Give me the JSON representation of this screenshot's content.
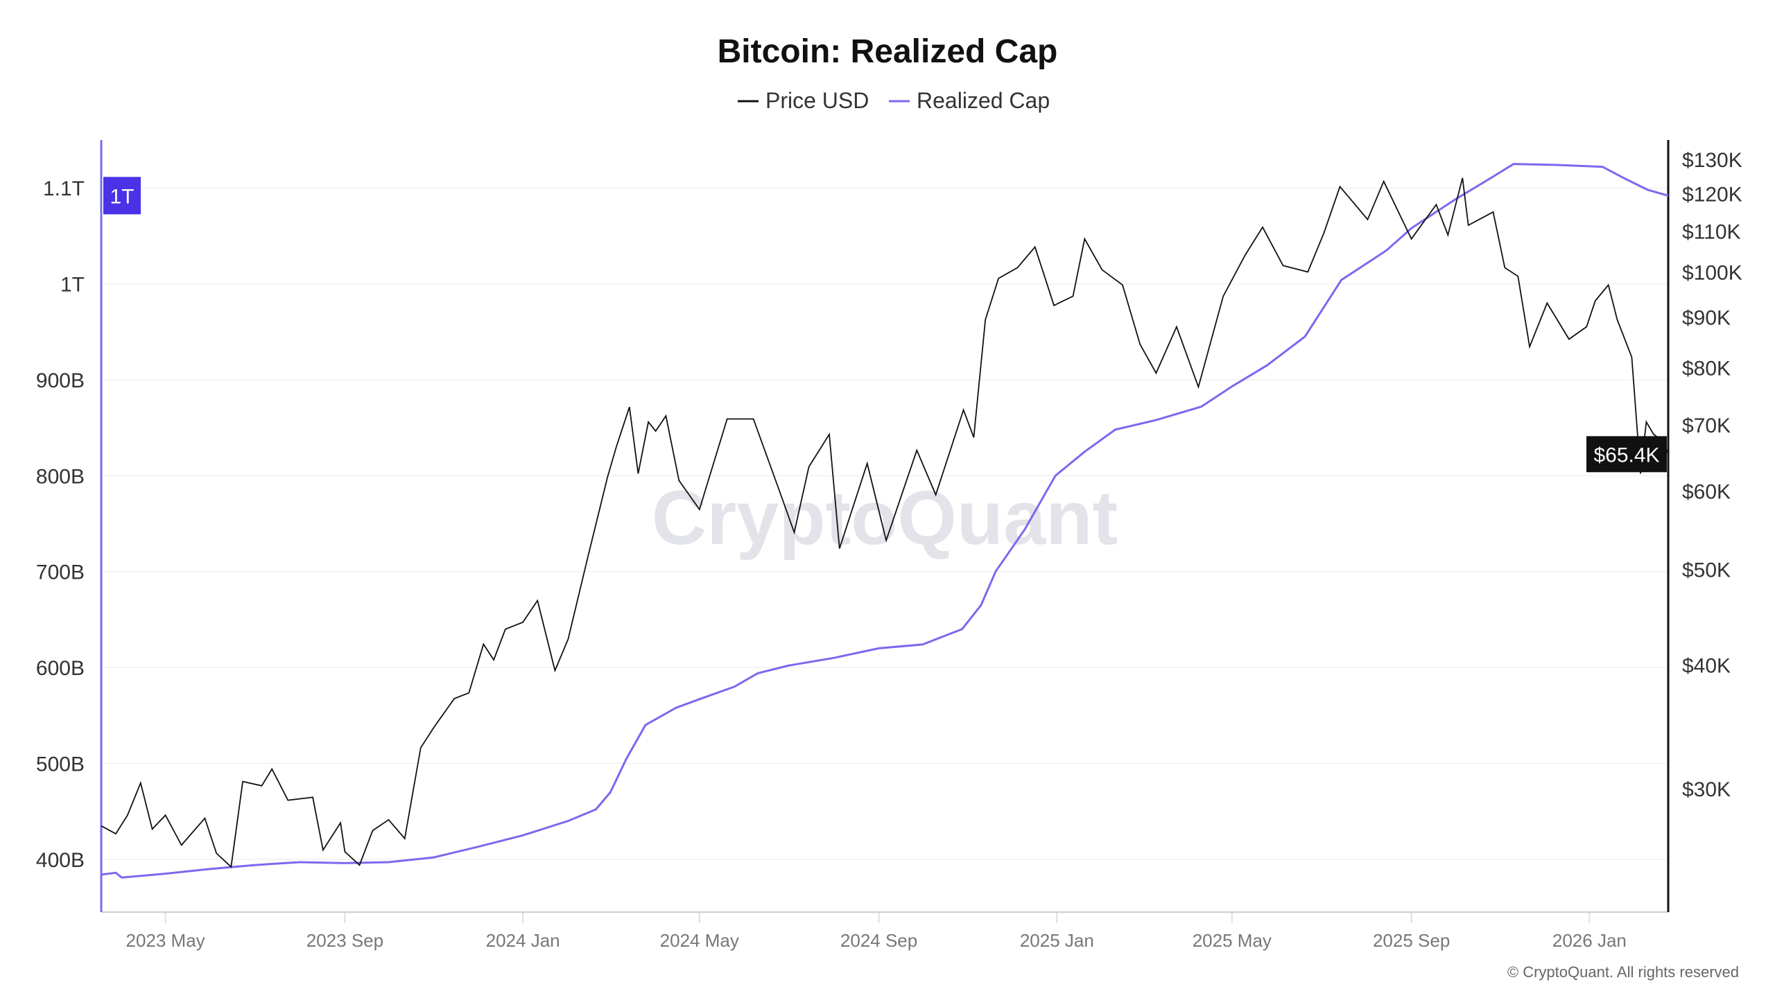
{
  "chart_data": {
    "type": "line",
    "title": "Bitcoin: Realized Cap",
    "watermark": "CryptoQuant",
    "copyright": "© CryptoQuant. All rights reserved",
    "legend": {
      "placement": "top-center",
      "entries": [
        "Price USD",
        "Realized Cap"
      ]
    },
    "colors": {
      "price": "#111111",
      "realized": "#7b68ee",
      "badge_left": "#4b32e6",
      "badge_right": "#111111"
    },
    "x_range": [
      "2023-03-18",
      "2026-02-24"
    ],
    "x_ticks": [
      {
        "date": "2023-05-01",
        "label": "2023 May"
      },
      {
        "date": "2023-09-01",
        "label": "2023 Sep"
      },
      {
        "date": "2024-01-01",
        "label": "2024 Jan"
      },
      {
        "date": "2024-05-01",
        "label": "2024 May"
      },
      {
        "date": "2024-09-01",
        "label": "2024 Sep"
      },
      {
        "date": "2025-01-01",
        "label": "2025 Jan"
      },
      {
        "date": "2025-05-01",
        "label": "2025 May"
      },
      {
        "date": "2025-09-01",
        "label": "2025 Sep"
      },
      {
        "date": "2026-01-01",
        "label": "2026 Jan"
      }
    ],
    "left_axis": {
      "name": "Realized Cap",
      "scale": "linear",
      "range": [
        345,
        1150
      ],
      "ticks": [
        {
          "v": 400,
          "label": "400B"
        },
        {
          "v": 500,
          "label": "500B"
        },
        {
          "v": 600,
          "label": "600B"
        },
        {
          "v": 700,
          "label": "700B"
        },
        {
          "v": 800,
          "label": "800B"
        },
        {
          "v": 900,
          "label": "900B"
        },
        {
          "v": 1000,
          "label": "1T"
        },
        {
          "v": 1100,
          "label": "1.1T"
        }
      ],
      "current_label": "1T",
      "current_value": 1092
    },
    "right_axis": {
      "name": "Price USD",
      "scale": "log",
      "range": [
        22.5,
        136
      ],
      "ticks": [
        {
          "v": 30,
          "label": "$30K"
        },
        {
          "v": 40,
          "label": "$40K"
        },
        {
          "v": 50,
          "label": "$50K"
        },
        {
          "v": 60,
          "label": "$60K"
        },
        {
          "v": 70,
          "label": "$70K"
        },
        {
          "v": 80,
          "label": "$80K"
        },
        {
          "v": 90,
          "label": "$90K"
        },
        {
          "v": 100,
          "label": "$100K"
        },
        {
          "v": 110,
          "label": "$110K"
        },
        {
          "v": 120,
          "label": "$120K"
        },
        {
          "v": 130,
          "label": "$130K"
        }
      ],
      "current_label": "$65.4K",
      "current_value": 65.4
    },
    "series": [
      {
        "name": "Price USD",
        "axis": "right",
        "unit": "K USD",
        "points": [
          [
            "2023-03-18",
            27.5
          ],
          [
            "2023-03-28",
            27.0
          ],
          [
            "2023-04-05",
            28.2
          ],
          [
            "2023-04-14",
            30.4
          ],
          [
            "2023-04-22",
            27.3
          ],
          [
            "2023-05-01",
            28.2
          ],
          [
            "2023-05-12",
            26.3
          ],
          [
            "2023-05-28",
            28.0
          ],
          [
            "2023-06-05",
            25.8
          ],
          [
            "2023-06-15",
            25.0
          ],
          [
            "2023-06-23",
            30.5
          ],
          [
            "2023-07-06",
            30.2
          ],
          [
            "2023-07-13",
            31.4
          ],
          [
            "2023-07-24",
            29.2
          ],
          [
            "2023-08-10",
            29.4
          ],
          [
            "2023-08-17",
            26.0
          ],
          [
            "2023-08-29",
            27.7
          ],
          [
            "2023-09-01",
            25.9
          ],
          [
            "2023-09-11",
            25.1
          ],
          [
            "2023-09-20",
            27.2
          ],
          [
            "2023-10-01",
            27.9
          ],
          [
            "2023-10-12",
            26.7
          ],
          [
            "2023-10-23",
            33.0
          ],
          [
            "2023-11-01",
            34.6
          ],
          [
            "2023-11-15",
            37.0
          ],
          [
            "2023-11-25",
            37.5
          ],
          [
            "2023-12-05",
            42.0
          ],
          [
            "2023-12-12",
            40.5
          ],
          [
            "2023-12-20",
            43.5
          ],
          [
            "2024-01-01",
            44.2
          ],
          [
            "2024-01-11",
            46.5
          ],
          [
            "2024-01-23",
            39.5
          ],
          [
            "2024-02-01",
            42.5
          ],
          [
            "2024-02-15",
            51.8
          ],
          [
            "2024-02-28",
            62.0
          ],
          [
            "2024-03-05",
            66.5
          ],
          [
            "2024-03-14",
            73.0
          ],
          [
            "2024-03-20",
            62.5
          ],
          [
            "2024-03-27",
            70.5
          ],
          [
            "2024-04-01",
            69.0
          ],
          [
            "2024-04-08",
            71.5
          ],
          [
            "2024-04-17",
            61.5
          ],
          [
            "2024-05-01",
            57.5
          ],
          [
            "2024-05-20",
            71.0
          ],
          [
            "2024-06-07",
            71.0
          ],
          [
            "2024-06-24",
            60.5
          ],
          [
            "2024-07-05",
            54.5
          ],
          [
            "2024-07-15",
            63.5
          ],
          [
            "2024-07-29",
            68.5
          ],
          [
            "2024-08-05",
            52.5
          ],
          [
            "2024-08-24",
            64.0
          ],
          [
            "2024-09-06",
            53.5
          ],
          [
            "2024-09-27",
            66.0
          ],
          [
            "2024-10-10",
            59.5
          ],
          [
            "2024-10-29",
            72.5
          ],
          [
            "2024-11-05",
            68.0
          ],
          [
            "2024-11-13",
            89.5
          ],
          [
            "2024-11-22",
            98.5
          ],
          [
            "2024-12-05",
            101.0
          ],
          [
            "2024-12-17",
            106.0
          ],
          [
            "2024-12-30",
            92.5
          ],
          [
            "2025-01-12",
            94.5
          ],
          [
            "2025-01-20",
            108.0
          ],
          [
            "2025-02-01",
            100.5
          ],
          [
            "2025-02-15",
            97.0
          ],
          [
            "2025-02-27",
            84.5
          ],
          [
            "2025-03-10",
            79.0
          ],
          [
            "2025-03-24",
            88.0
          ],
          [
            "2025-04-08",
            76.5
          ],
          [
            "2025-04-25",
            94.5
          ],
          [
            "2025-05-10",
            104.0
          ],
          [
            "2025-05-22",
            111.0
          ],
          [
            "2025-06-05",
            101.5
          ],
          [
            "2025-06-22",
            100.0
          ],
          [
            "2025-07-03",
            109.5
          ],
          [
            "2025-07-14",
            122.0
          ],
          [
            "2025-08-02",
            113.0
          ],
          [
            "2025-08-13",
            123.5
          ],
          [
            "2025-09-01",
            108.0
          ],
          [
            "2025-09-18",
            117.0
          ],
          [
            "2025-09-26",
            109.0
          ],
          [
            "2025-10-06",
            124.5
          ],
          [
            "2025-10-10",
            111.5
          ],
          [
            "2025-10-27",
            115.0
          ],
          [
            "2025-11-04",
            101.0
          ],
          [
            "2025-11-13",
            99.0
          ],
          [
            "2025-11-21",
            84.0
          ],
          [
            "2025-12-03",
            93.0
          ],
          [
            "2025-12-18",
            85.5
          ],
          [
            "2025-12-30",
            88.0
          ],
          [
            "2026-01-05",
            93.5
          ],
          [
            "2026-01-14",
            97.0
          ],
          [
            "2026-01-20",
            89.5
          ],
          [
            "2026-01-30",
            82.0
          ],
          [
            "2026-02-05",
            62.5
          ],
          [
            "2026-02-09",
            70.5
          ],
          [
            "2026-02-14",
            68.5
          ],
          [
            "2026-02-20",
            67.5
          ],
          [
            "2026-02-24",
            65.4
          ]
        ]
      },
      {
        "name": "Realized Cap",
        "axis": "left",
        "unit": "B USD",
        "points": [
          [
            "2023-03-18",
            384
          ],
          [
            "2023-03-28",
            386
          ],
          [
            "2023-04-01",
            381
          ],
          [
            "2023-05-01",
            385
          ],
          [
            "2023-06-01",
            390
          ],
          [
            "2023-07-01",
            394
          ],
          [
            "2023-08-01",
            397
          ],
          [
            "2023-09-01",
            396
          ],
          [
            "2023-10-01",
            397
          ],
          [
            "2023-11-01",
            402
          ],
          [
            "2023-12-01",
            413
          ],
          [
            "2024-01-01",
            425
          ],
          [
            "2024-02-01",
            440
          ],
          [
            "2024-02-20",
            452
          ],
          [
            "2024-03-01",
            470
          ],
          [
            "2024-03-12",
            505
          ],
          [
            "2024-03-25",
            540
          ],
          [
            "2024-04-15",
            558
          ],
          [
            "2024-05-01",
            567
          ],
          [
            "2024-05-25",
            580
          ],
          [
            "2024-06-10",
            594
          ],
          [
            "2024-07-01",
            602
          ],
          [
            "2024-08-01",
            610
          ],
          [
            "2024-09-01",
            620
          ],
          [
            "2024-10-01",
            624
          ],
          [
            "2024-10-28",
            640
          ],
          [
            "2024-11-10",
            665
          ],
          [
            "2024-11-20",
            700
          ],
          [
            "2024-12-10",
            744
          ],
          [
            "2024-12-31",
            800
          ],
          [
            "2025-01-20",
            825
          ],
          [
            "2025-02-10",
            848
          ],
          [
            "2025-03-10",
            858
          ],
          [
            "2025-04-10",
            872
          ],
          [
            "2025-05-01",
            893
          ],
          [
            "2025-05-25",
            915
          ],
          [
            "2025-06-20",
            945
          ],
          [
            "2025-07-15",
            1004
          ],
          [
            "2025-08-15",
            1035
          ],
          [
            "2025-09-01",
            1058
          ],
          [
            "2025-10-01",
            1088
          ],
          [
            "2025-10-25",
            1110
          ],
          [
            "2025-11-10",
            1125
          ],
          [
            "2025-12-10",
            1124
          ],
          [
            "2026-01-10",
            1122
          ],
          [
            "2026-01-25",
            1110
          ],
          [
            "2026-02-10",
            1098
          ],
          [
            "2026-02-24",
            1092
          ]
        ]
      }
    ]
  }
}
